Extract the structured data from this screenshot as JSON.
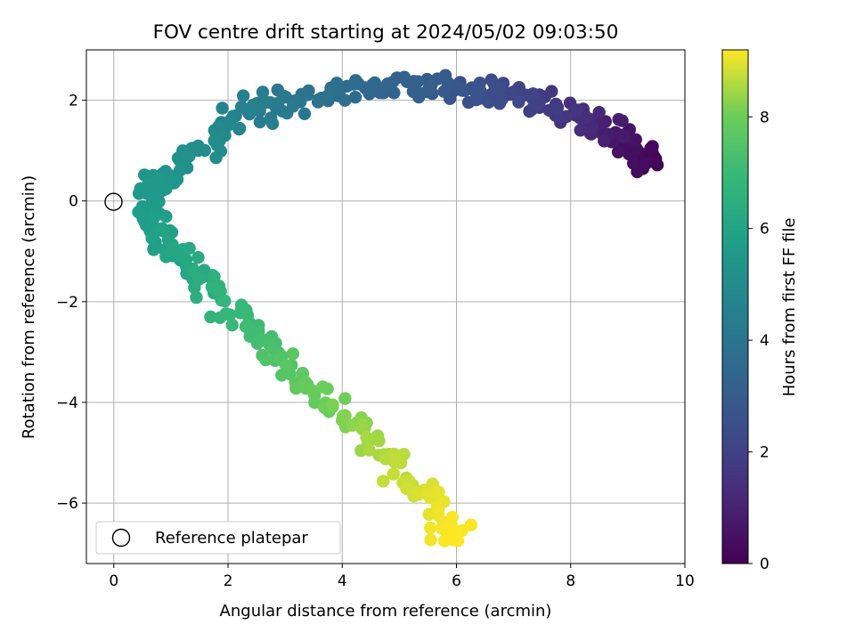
{
  "chart_data": {
    "type": "scatter",
    "title": "FOV centre drift starting at 2024/05/02 09:03:50",
    "xlabel": "Angular distance from reference (arcmin)",
    "ylabel": "Rotation from reference (arcmin)",
    "xlim": [
      -0.48,
      10.0
    ],
    "ylim": [
      -7.2,
      3.0
    ],
    "xticks": [
      0,
      2,
      4,
      6,
      8,
      10
    ],
    "yticks": [
      -6,
      -4,
      -2,
      0,
      2
    ],
    "grid": true,
    "legend_position": "lower-left",
    "colorbar": {
      "label": "Hours from first FF file",
      "colormap": "viridis",
      "range": [
        0,
        9.2
      ],
      "ticks": [
        0,
        2,
        4,
        6,
        8
      ]
    },
    "reference": {
      "name": "Reference platepar",
      "x": 0,
      "y": 0
    },
    "path_points": [
      {
        "x": 9.5,
        "y": 0.75,
        "t": 0.0
      },
      {
        "x": 9.2,
        "y": 0.95,
        "t": 0.3
      },
      {
        "x": 8.8,
        "y": 1.35,
        "t": 0.7
      },
      {
        "x": 8.3,
        "y": 1.55,
        "t": 1.2
      },
      {
        "x": 7.7,
        "y": 1.85,
        "t": 1.7
      },
      {
        "x": 7.0,
        "y": 2.05,
        "t": 2.2
      },
      {
        "x": 6.3,
        "y": 2.2,
        "t": 2.6
      },
      {
        "x": 5.5,
        "y": 2.3,
        "t": 3.0
      },
      {
        "x": 4.6,
        "y": 2.3,
        "t": 3.4
      },
      {
        "x": 3.8,
        "y": 2.15,
        "t": 3.8
      },
      {
        "x": 2.9,
        "y": 1.95,
        "t": 4.2
      },
      {
        "x": 2.2,
        "y": 1.75,
        "t": 4.6
      },
      {
        "x": 1.6,
        "y": 1.1,
        "t": 5.0
      },
      {
        "x": 1.0,
        "y": 0.6,
        "t": 5.3
      },
      {
        "x": 0.7,
        "y": 0.2,
        "t": 5.5
      },
      {
        "x": 0.6,
        "y": -0.3,
        "t": 5.7
      },
      {
        "x": 0.9,
        "y": -0.8,
        "t": 5.9
      },
      {
        "x": 1.4,
        "y": -1.4,
        "t": 6.3
      },
      {
        "x": 2.0,
        "y": -2.1,
        "t": 6.8
      },
      {
        "x": 2.6,
        "y": -2.7,
        "t": 7.2
      },
      {
        "x": 3.2,
        "y": -3.5,
        "t": 7.7
      },
      {
        "x": 3.9,
        "y": -4.2,
        "t": 8.1
      },
      {
        "x": 4.6,
        "y": -4.9,
        "t": 8.5
      },
      {
        "x": 5.2,
        "y": -5.6,
        "t": 8.8
      },
      {
        "x": 5.8,
        "y": -6.3,
        "t": 9.1
      },
      {
        "x": 6.05,
        "y": -6.7,
        "t": 9.2
      }
    ]
  }
}
